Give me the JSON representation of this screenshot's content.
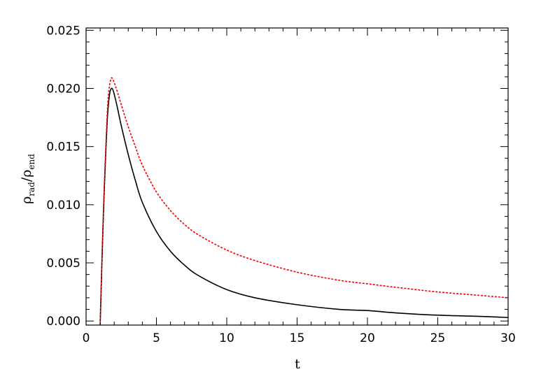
{
  "chart_data": {
    "type": "line",
    "xlabel": "t",
    "ylabel": {
      "symbol": "ρ",
      "numerator_sub": "rad",
      "slash": "/",
      "denominator_sub": "end"
    },
    "xlim": [
      0,
      30
    ],
    "ylim": [
      -0.00035,
      0.0252
    ],
    "x_ticks": [
      0,
      5,
      10,
      15,
      20,
      25,
      30
    ],
    "x_tick_labels": [
      "0",
      "5",
      "10",
      "15",
      "20",
      "25",
      "30"
    ],
    "y_ticks": [
      0.0,
      0.005,
      0.01,
      0.015,
      0.02,
      0.025
    ],
    "y_tick_labels": [
      "0.000",
      "0.005",
      "0.010",
      "0.015",
      "0.020",
      "0.025"
    ],
    "grid": false,
    "legend": "none",
    "series": [
      {
        "color": "#000000",
        "style": "solid",
        "points": [
          [
            1.0,
            -0.0004
          ],
          [
            1.1,
            0.004
          ],
          [
            1.2,
            0.008
          ],
          [
            1.3,
            0.0115
          ],
          [
            1.4,
            0.0145
          ],
          [
            1.5,
            0.0172
          ],
          [
            1.6,
            0.0188
          ],
          [
            1.7,
            0.0197
          ],
          [
            1.8,
            0.02
          ],
          [
            1.9,
            0.0199
          ],
          [
            2.0,
            0.0195
          ],
          [
            2.2,
            0.0185
          ],
          [
            2.5,
            0.0168
          ],
          [
            3.0,
            0.0143
          ],
          [
            3.5,
            0.0121
          ],
          [
            4.0,
            0.0102
          ],
          [
            5.0,
            0.0077
          ],
          [
            6.0,
            0.006
          ],
          [
            7.0,
            0.0048
          ],
          [
            8.0,
            0.0039
          ],
          [
            10.0,
            0.0027
          ],
          [
            12.0,
            0.002
          ],
          [
            15.0,
            0.0014
          ],
          [
            18.0,
            0.001
          ],
          [
            20.0,
            0.0009
          ],
          [
            22.0,
            0.0007
          ],
          [
            25.0,
            0.0005
          ],
          [
            28.0,
            0.0004
          ],
          [
            30.0,
            0.0003
          ]
        ]
      },
      {
        "color": "#ff0000",
        "style": "dotted",
        "points": [
          [
            1.0,
            -0.0004
          ],
          [
            1.1,
            0.004
          ],
          [
            1.2,
            0.0082
          ],
          [
            1.3,
            0.0118
          ],
          [
            1.4,
            0.0149
          ],
          [
            1.5,
            0.0178
          ],
          [
            1.6,
            0.0196
          ],
          [
            1.7,
            0.0205
          ],
          [
            1.8,
            0.0209
          ],
          [
            1.9,
            0.0208
          ],
          [
            2.0,
            0.0205
          ],
          [
            2.2,
            0.0198
          ],
          [
            2.5,
            0.0186
          ],
          [
            3.0,
            0.0167
          ],
          [
            3.5,
            0.015
          ],
          [
            4.0,
            0.0134
          ],
          [
            5.0,
            0.0111
          ],
          [
            6.0,
            0.0095
          ],
          [
            7.0,
            0.0083
          ],
          [
            8.0,
            0.0074
          ],
          [
            10.0,
            0.0061
          ],
          [
            12.0,
            0.0052
          ],
          [
            15.0,
            0.0042
          ],
          [
            18.0,
            0.0035
          ],
          [
            20.0,
            0.0032
          ],
          [
            22.0,
            0.0029
          ],
          [
            25.0,
            0.0025
          ],
          [
            28.0,
            0.0022
          ],
          [
            30.0,
            0.002
          ]
        ]
      }
    ]
  }
}
